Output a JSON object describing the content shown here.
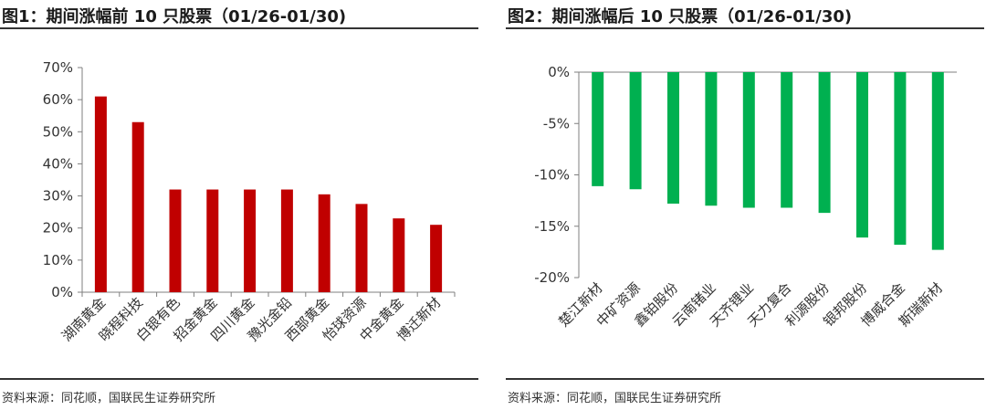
{
  "charts": [
    {
      "title": "图1：期间涨幅前 10 只股票（01/26-01/30)",
      "source": "资料来源：同花顺，国联民生证券研究所",
      "chart_data": {
        "type": "bar",
        "categories": [
          "湖南黄金",
          "晓程科技",
          "白银有色",
          "招金黄金",
          "四川黄金",
          "豫光金铅",
          "西部黄金",
          "怡球资源",
          "中金黄金",
          "博迁新材"
        ],
        "values": [
          61,
          53,
          32,
          32,
          32,
          32,
          30.5,
          27.5,
          23,
          21
        ],
        "ylim": [
          0,
          70
        ],
        "yticks": [
          0,
          10,
          20,
          30,
          40,
          50,
          60,
          70
        ],
        "tick_labels": [
          "0%",
          "10%",
          "20%",
          "30%",
          "40%",
          "50%",
          "60%",
          "70%"
        ],
        "color": "#C00000",
        "xlabel": "",
        "ylabel": "",
        "grid": false
      }
    },
    {
      "title": "图2：期间涨幅后 10 只股票（01/26-01/30)",
      "source": "资料来源：同花顺，国联民生证券研究所",
      "chart_data": {
        "type": "bar",
        "categories": [
          "楚江新材",
          "中矿资源",
          "鑫铂股份",
          "云南锗业",
          "天齐锂业",
          "天力复合",
          "利源股份",
          "银邦股份",
          "博威合金",
          "斯瑞新材"
        ],
        "values": [
          -11.1,
          -11.4,
          -12.8,
          -13,
          -13.2,
          -13.2,
          -13.7,
          -16.1,
          -16.8,
          -17.3
        ],
        "ylim": [
          -20,
          0
        ],
        "yticks": [
          0,
          -5,
          -10,
          -15,
          -20
        ],
        "tick_labels": [
          "0%",
          "-5%",
          "-10%",
          "-15%",
          "-20%"
        ],
        "color": "#00B050",
        "xlabel": "",
        "ylabel": "",
        "grid": false
      }
    }
  ]
}
